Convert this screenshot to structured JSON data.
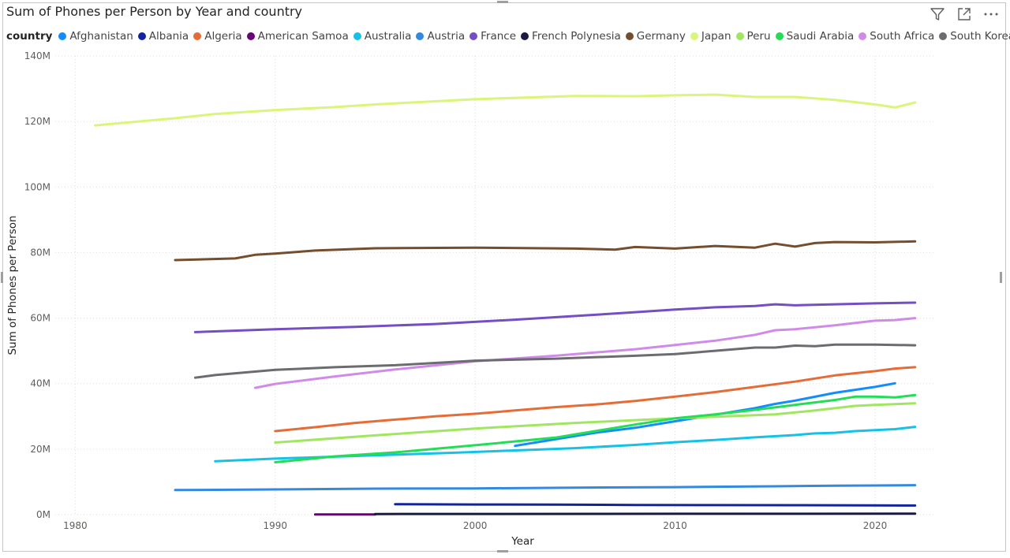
{
  "visual": {
    "title": "Sum of Phones per Person by Year and country",
    "toolbar": [
      {
        "name": "filter-icon"
      },
      {
        "name": "focus-mode-icon"
      },
      {
        "name": "more-options-icon"
      }
    ]
  },
  "chart_data": {
    "type": "line",
    "title": "Sum of Phones per Person by Year and country",
    "xlabel": "Year",
    "ylabel": "Sum of Phones per Person",
    "legend_title": "country",
    "legend_position": "top-left",
    "grid": true,
    "xlim": [
      1979,
      2023
    ],
    "ylim": [
      0,
      140000000
    ],
    "x_ticks": [
      1980,
      1990,
      2000,
      2010,
      2020
    ],
    "x_tick_labels": [
      "1980",
      "1990",
      "2000",
      "2010",
      "2020"
    ],
    "y_ticks": [
      0,
      20000000,
      40000000,
      60000000,
      80000000,
      100000000,
      120000000,
      140000000
    ],
    "y_tick_labels": [
      "0M",
      "20M",
      "40M",
      "60M",
      "80M",
      "100M",
      "120M",
      "140M"
    ],
    "series": [
      {
        "name": "Afghanistan",
        "color": "#118DFF",
        "points": [
          [
            2002,
            21000000
          ],
          [
            2004,
            23000000
          ],
          [
            2006,
            25000000
          ],
          [
            2008,
            26500000
          ],
          [
            2010,
            28500000
          ],
          [
            2012,
            30500000
          ],
          [
            2014,
            32500000
          ],
          [
            2015,
            33800000
          ],
          [
            2016,
            34800000
          ],
          [
            2018,
            37200000
          ],
          [
            2020,
            39000000
          ],
          [
            2021,
            40100000
          ]
        ]
      },
      {
        "name": "Albania",
        "color": "#12239E",
        "points": [
          [
            1996,
            3200000
          ],
          [
            2000,
            3100000
          ],
          [
            2004,
            3050000
          ],
          [
            2008,
            2950000
          ],
          [
            2012,
            2900000
          ],
          [
            2016,
            2880000
          ],
          [
            2020,
            2850000
          ],
          [
            2022,
            2800000
          ]
        ]
      },
      {
        "name": "Algeria",
        "color": "#E66C37",
        "points": [
          [
            1990,
            25500000
          ],
          [
            1992,
            26700000
          ],
          [
            1994,
            28000000
          ],
          [
            1996,
            29000000
          ],
          [
            1998,
            30000000
          ],
          [
            2000,
            30800000
          ],
          [
            2002,
            31800000
          ],
          [
            2004,
            32800000
          ],
          [
            2006,
            33600000
          ],
          [
            2008,
            34700000
          ],
          [
            2010,
            36000000
          ],
          [
            2012,
            37400000
          ],
          [
            2014,
            39000000
          ],
          [
            2016,
            40600000
          ],
          [
            2018,
            42500000
          ],
          [
            2020,
            43800000
          ],
          [
            2021,
            44600000
          ],
          [
            2022,
            45000000
          ]
        ]
      },
      {
        "name": "American Samoa",
        "color": "#6B007B",
        "points": [
          [
            1992,
            50000
          ],
          [
            1995,
            50000
          ]
        ]
      },
      {
        "name": "Australia",
        "color": "#16C1E8",
        "points": [
          [
            1987,
            16300000
          ],
          [
            1990,
            17100000
          ],
          [
            1993,
            17700000
          ],
          [
            1996,
            18300000
          ],
          [
            1999,
            18900000
          ],
          [
            2002,
            19600000
          ],
          [
            2005,
            20300000
          ],
          [
            2008,
            21300000
          ],
          [
            2010,
            22100000
          ],
          [
            2012,
            22800000
          ],
          [
            2014,
            23600000
          ],
          [
            2016,
            24300000
          ],
          [
            2017,
            24800000
          ],
          [
            2018,
            25000000
          ],
          [
            2019,
            25500000
          ],
          [
            2020,
            25800000
          ],
          [
            2021,
            26100000
          ],
          [
            2022,
            26800000
          ]
        ]
      },
      {
        "name": "Austria",
        "color": "#3389E0",
        "points": [
          [
            1985,
            7500000
          ],
          [
            1990,
            7700000
          ],
          [
            1995,
            7950000
          ],
          [
            2000,
            8000000
          ],
          [
            2005,
            8250000
          ],
          [
            2010,
            8400000
          ],
          [
            2015,
            8650000
          ],
          [
            2018,
            8850000
          ],
          [
            2020,
            8900000
          ],
          [
            2022,
            9000000
          ]
        ]
      },
      {
        "name": "France",
        "color": "#744EC2",
        "points": [
          [
            1986,
            55700000
          ],
          [
            1990,
            56600000
          ],
          [
            1994,
            57300000
          ],
          [
            1998,
            58200000
          ],
          [
            2002,
            59500000
          ],
          [
            2006,
            61000000
          ],
          [
            2008,
            61800000
          ],
          [
            2010,
            62600000
          ],
          [
            2012,
            63300000
          ],
          [
            2014,
            63700000
          ],
          [
            2015,
            64200000
          ],
          [
            2016,
            63900000
          ],
          [
            2018,
            64200000
          ],
          [
            2020,
            64500000
          ],
          [
            2022,
            64700000
          ]
        ]
      },
      {
        "name": "French Polynesia",
        "color": "#1A1A40",
        "points": [
          [
            1995,
            190000
          ],
          [
            2000,
            220000
          ],
          [
            2010,
            270000
          ],
          [
            2022,
            300000
          ]
        ]
      },
      {
        "name": "Germany",
        "color": "#744E2E",
        "points": [
          [
            1985,
            77700000
          ],
          [
            1988,
            78200000
          ],
          [
            1989,
            79300000
          ],
          [
            1990,
            79700000
          ],
          [
            1992,
            80600000
          ],
          [
            1995,
            81300000
          ],
          [
            2000,
            81500000
          ],
          [
            2005,
            81200000
          ],
          [
            2007,
            80900000
          ],
          [
            2008,
            81700000
          ],
          [
            2010,
            81200000
          ],
          [
            2012,
            82000000
          ],
          [
            2014,
            81500000
          ],
          [
            2015,
            82700000
          ],
          [
            2016,
            81800000
          ],
          [
            2017,
            82900000
          ],
          [
            2018,
            83200000
          ],
          [
            2020,
            83100000
          ],
          [
            2022,
            83400000
          ]
        ]
      },
      {
        "name": "Japan",
        "color": "#D9F57A",
        "points": [
          [
            1981,
            118800000
          ],
          [
            1985,
            121000000
          ],
          [
            1987,
            122300000
          ],
          [
            1990,
            123500000
          ],
          [
            1993,
            124400000
          ],
          [
            1995,
            125200000
          ],
          [
            2000,
            126800000
          ],
          [
            2005,
            127800000
          ],
          [
            2008,
            127700000
          ],
          [
            2010,
            128000000
          ],
          [
            2012,
            128200000
          ],
          [
            2014,
            127500000
          ],
          [
            2016,
            127500000
          ],
          [
            2018,
            126600000
          ],
          [
            2020,
            125200000
          ],
          [
            2021,
            124300000
          ],
          [
            2022,
            125800000
          ]
        ]
      },
      {
        "name": "Peru",
        "color": "#A0E660",
        "points": [
          [
            1990,
            22000000
          ],
          [
            1995,
            24200000
          ],
          [
            2000,
            26300000
          ],
          [
            2005,
            28000000
          ],
          [
            2010,
            29400000
          ],
          [
            2015,
            30600000
          ],
          [
            2017,
            31800000
          ],
          [
            2019,
            33200000
          ],
          [
            2020,
            33500000
          ],
          [
            2022,
            34000000
          ]
        ]
      },
      {
        "name": "Saudi Arabia",
        "color": "#22DD55",
        "points": [
          [
            1990,
            16000000
          ],
          [
            1993,
            17800000
          ],
          [
            1996,
            19000000
          ],
          [
            2000,
            21200000
          ],
          [
            2004,
            23500000
          ],
          [
            2008,
            27500000
          ],
          [
            2010,
            29400000
          ],
          [
            2012,
            30600000
          ],
          [
            2014,
            32000000
          ],
          [
            2016,
            33500000
          ],
          [
            2018,
            35000000
          ],
          [
            2019,
            36000000
          ],
          [
            2020,
            36000000
          ],
          [
            2021,
            35800000
          ],
          [
            2022,
            36500000
          ]
        ]
      },
      {
        "name": "South Africa",
        "color": "#D08AE8",
        "points": [
          [
            1989,
            38700000
          ],
          [
            1990,
            39900000
          ],
          [
            1993,
            42200000
          ],
          [
            1996,
            44300000
          ],
          [
            2000,
            46800000
          ],
          [
            2004,
            48500000
          ],
          [
            2008,
            50500000
          ],
          [
            2010,
            51800000
          ],
          [
            2012,
            53100000
          ],
          [
            2014,
            54900000
          ],
          [
            2015,
            56300000
          ],
          [
            2016,
            56600000
          ],
          [
            2018,
            57800000
          ],
          [
            2020,
            59200000
          ],
          [
            2021,
            59400000
          ],
          [
            2022,
            60000000
          ]
        ]
      },
      {
        "name": "South Korea",
        "color": "#6C6C70",
        "points": [
          [
            1986,
            41800000
          ],
          [
            1987,
            42600000
          ],
          [
            1990,
            44200000
          ],
          [
            1993,
            45000000
          ],
          [
            1996,
            45600000
          ],
          [
            2000,
            47000000
          ],
          [
            2004,
            47600000
          ],
          [
            2008,
            48500000
          ],
          [
            2010,
            49000000
          ],
          [
            2012,
            50000000
          ],
          [
            2014,
            51000000
          ],
          [
            2015,
            51000000
          ],
          [
            2016,
            51600000
          ],
          [
            2017,
            51400000
          ],
          [
            2018,
            51900000
          ],
          [
            2020,
            51900000
          ],
          [
            2022,
            51700000
          ]
        ]
      }
    ]
  }
}
